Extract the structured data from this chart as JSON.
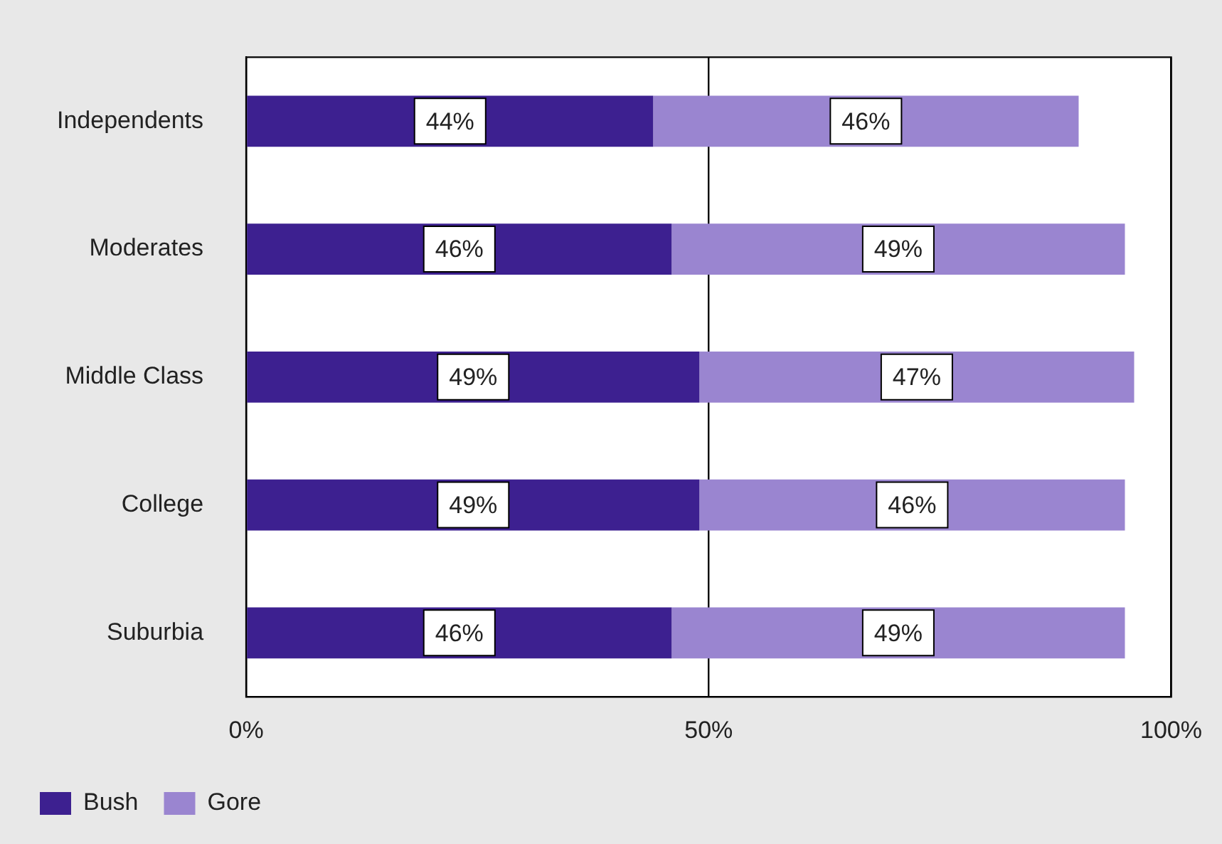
{
  "chart_data": {
    "type": "bar",
    "orientation": "horizontal",
    "stacked": true,
    "categories": [
      "Independents",
      "Moderates",
      "Middle Class",
      "College",
      "Suburbia"
    ],
    "series": [
      {
        "name": "Bush",
        "color": "#3d2090",
        "values": [
          44,
          46,
          49,
          49,
          46
        ],
        "value_labels": [
          "44%",
          "46%",
          "49%",
          "49%",
          "46%"
        ]
      },
      {
        "name": "Gore",
        "color": "#9a85d0",
        "values": [
          46,
          49,
          47,
          46,
          49
        ],
        "value_labels": [
          "46%",
          "49%",
          "47%",
          "46%",
          "49%"
        ]
      }
    ],
    "xlim": [
      0,
      100
    ],
    "xticks": [
      {
        "value": 0,
        "label": "0%"
      },
      {
        "value": 50,
        "label": "50%"
      },
      {
        "value": 100,
        "label": "100%"
      }
    ],
    "grid": "x",
    "legend": "bottom left"
  }
}
